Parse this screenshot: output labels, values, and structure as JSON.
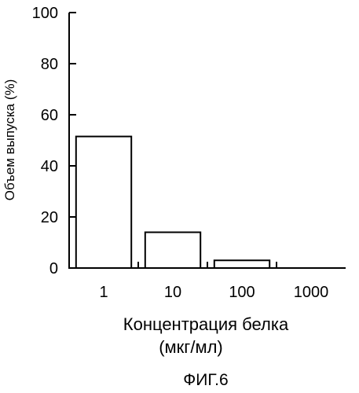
{
  "chart_data": {
    "type": "bar",
    "categories": [
      "1",
      "10",
      "100",
      "1000"
    ],
    "values": [
      51.5,
      14,
      3,
      0
    ],
    "ylim": [
      0,
      100
    ],
    "yticks": [
      0,
      20,
      40,
      60,
      80,
      100
    ],
    "ylabel": "Объем выпуска (%)",
    "xlabel_line1": "Концентрация белка",
    "xlabel_line2": "(мкг/мл)",
    "grid": false,
    "legend": "none"
  },
  "figure_label": "ФИГ.6"
}
